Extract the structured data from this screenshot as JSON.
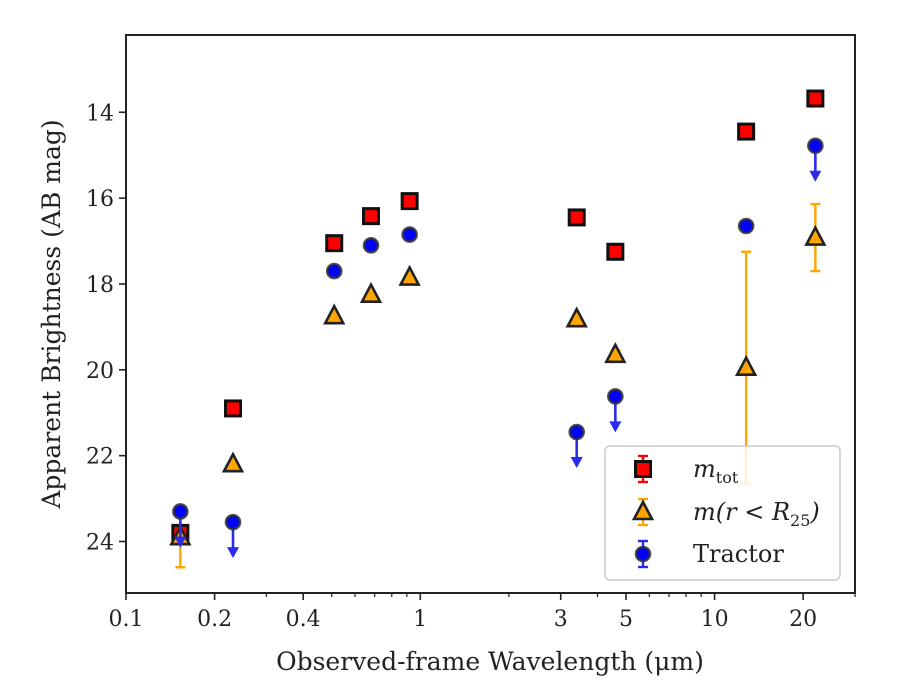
{
  "chart_data": {
    "type": "scatter",
    "xlabel": "Observed-frame Wavelength (μm)",
    "ylabel": "Apparent Brightness (AB mag)",
    "xscale": "log",
    "xlim": [
      0.1,
      30
    ],
    "ylim": [
      25.2,
      12.2
    ],
    "y_inverted": true,
    "xticks": [
      0.1,
      0.2,
      0.4,
      1,
      3,
      5,
      10,
      20
    ],
    "xtick_labels": [
      "0.1",
      "0.2",
      "0.4",
      "1",
      "3",
      "5",
      "10",
      "20"
    ],
    "yticks": [
      14,
      16,
      18,
      20,
      22,
      24
    ],
    "ytick_labels": [
      "14",
      "16",
      "18",
      "20",
      "22",
      "24"
    ],
    "grid": false,
    "legend_position": "bottom-right",
    "series": [
      {
        "name": "m_tot",
        "legend_base": "m",
        "legend_sub": "tot",
        "marker": "square",
        "color": "#ff0000",
        "edge_color": "#111111",
        "points": [
          {
            "x": 0.153,
            "y": 23.8,
            "err": 0.15,
            "upper_limit": false
          },
          {
            "x": 0.231,
            "y": 20.9,
            "err": 0.05,
            "upper_limit": false
          },
          {
            "x": 0.51,
            "y": 17.05,
            "err": 0.03,
            "upper_limit": false
          },
          {
            "x": 0.68,
            "y": 16.42,
            "err": 0.03,
            "upper_limit": false
          },
          {
            "x": 0.92,
            "y": 16.07,
            "err": 0.03,
            "upper_limit": false
          },
          {
            "x": 3.4,
            "y": 16.45,
            "err": 0.03,
            "upper_limit": false
          },
          {
            "x": 4.6,
            "y": 17.25,
            "err": 0.03,
            "upper_limit": false
          },
          {
            "x": 12.8,
            "y": 14.45,
            "err": 0.03,
            "upper_limit": false
          },
          {
            "x": 22.0,
            "y": 13.68,
            "err": 0.03,
            "upper_limit": false
          }
        ]
      },
      {
        "name": "m(r < R_25)",
        "legend_base": "m(r < R",
        "legend_sub": "25",
        "legend_tail": ")",
        "marker": "triangle",
        "color": "#ffa500",
        "edge_color": "#222222",
        "points": [
          {
            "x": 0.153,
            "y": 23.9,
            "err": 0.7,
            "upper_limit": false
          },
          {
            "x": 0.231,
            "y": 22.2,
            "err": 0.05,
            "upper_limit": false
          },
          {
            "x": 0.51,
            "y": 18.75,
            "err": 0.03,
            "upper_limit": false
          },
          {
            "x": 0.68,
            "y": 18.25,
            "err": 0.03,
            "upper_limit": false
          },
          {
            "x": 0.92,
            "y": 17.85,
            "err": 0.03,
            "upper_limit": false
          },
          {
            "x": 3.4,
            "y": 18.82,
            "err": 0.05,
            "upper_limit": false
          },
          {
            "x": 4.6,
            "y": 19.65,
            "err": 0.1,
            "upper_limit": false
          },
          {
            "x": 12.8,
            "y": 19.95,
            "err": 2.7,
            "upper_limit": false
          },
          {
            "x": 22.0,
            "y": 16.92,
            "err": 0.78,
            "upper_limit": false
          }
        ]
      },
      {
        "name": "Tractor",
        "legend_base": "Tractor",
        "marker": "circle",
        "color": "#0000ff",
        "edge_color": "#333333",
        "points": [
          {
            "x": 0.153,
            "y": 23.3,
            "err": 0.1,
            "upper_limit": true
          },
          {
            "x": 0.231,
            "y": 23.55,
            "err": 0.1,
            "upper_limit": true
          },
          {
            "x": 0.51,
            "y": 17.7,
            "err": 0.03,
            "upper_limit": false
          },
          {
            "x": 0.68,
            "y": 17.1,
            "err": 0.03,
            "upper_limit": false
          },
          {
            "x": 0.92,
            "y": 16.85,
            "err": 0.03,
            "upper_limit": false
          },
          {
            "x": 3.4,
            "y": 21.45,
            "err": 0.1,
            "upper_limit": true
          },
          {
            "x": 4.6,
            "y": 20.62,
            "err": 0.1,
            "upper_limit": true
          },
          {
            "x": 12.8,
            "y": 16.65,
            "err": 0.03,
            "upper_limit": false
          },
          {
            "x": 22.0,
            "y": 14.78,
            "err": 0.1,
            "upper_limit": true
          }
        ]
      }
    ]
  }
}
